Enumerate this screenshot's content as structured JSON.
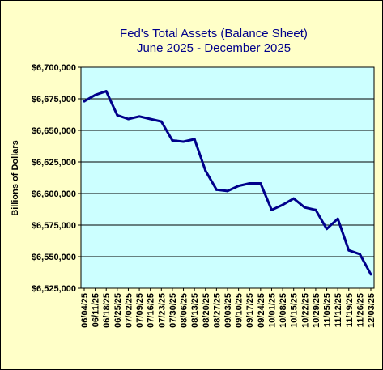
{
  "chart_data": {
    "type": "line",
    "title": "Fed's Total Assets (Balance Sheet)",
    "subtitle": "June 2025 - December 2025",
    "xlabel": "",
    "ylabel": "Billions of Dollars",
    "ylim": [
      6525000,
      6700000
    ],
    "yticks": [
      6525000,
      6550000,
      6575000,
      6600000,
      6625000,
      6650000,
      6675000,
      6700000
    ],
    "ytick_labels": [
      "$6,525,000",
      "$6,550,000",
      "$6,575,000",
      "$6,600,000",
      "$6,625,000",
      "$6,650,000",
      "$6,675,000",
      "$6,700,000"
    ],
    "categories": [
      "06/04/25",
      "06/11/25",
      "06/18/25",
      "06/25/25",
      "07/02/25",
      "07/09/25",
      "07/16/25",
      "07/23/25",
      "07/30/25",
      "08/06/25",
      "08/13/25",
      "08/20/25",
      "08/27/25",
      "09/03/25",
      "09/10/25",
      "09/17/25",
      "09/24/25",
      "10/01/25",
      "10/08/25",
      "10/15/25",
      "10/22/25",
      "10/29/25",
      "11/05/25",
      "11/12/25",
      "11/19/25",
      "11/26/25",
      "12/03/25"
    ],
    "values": [
      6673000,
      6678000,
      6681000,
      6662000,
      6659000,
      6661000,
      6659000,
      6657000,
      6642000,
      6641000,
      6643000,
      6618000,
      6603000,
      6602000,
      6606000,
      6608000,
      6608000,
      6587000,
      6591000,
      6596000,
      6589000,
      6587000,
      6572000,
      6580000,
      6555000,
      6552000,
      6536000
    ],
    "grid": true,
    "colors": {
      "background": "#ffffc8",
      "plot_area": "#ccffff",
      "line": "#00008b",
      "title": "#00008b",
      "gridline": "#000000"
    }
  }
}
